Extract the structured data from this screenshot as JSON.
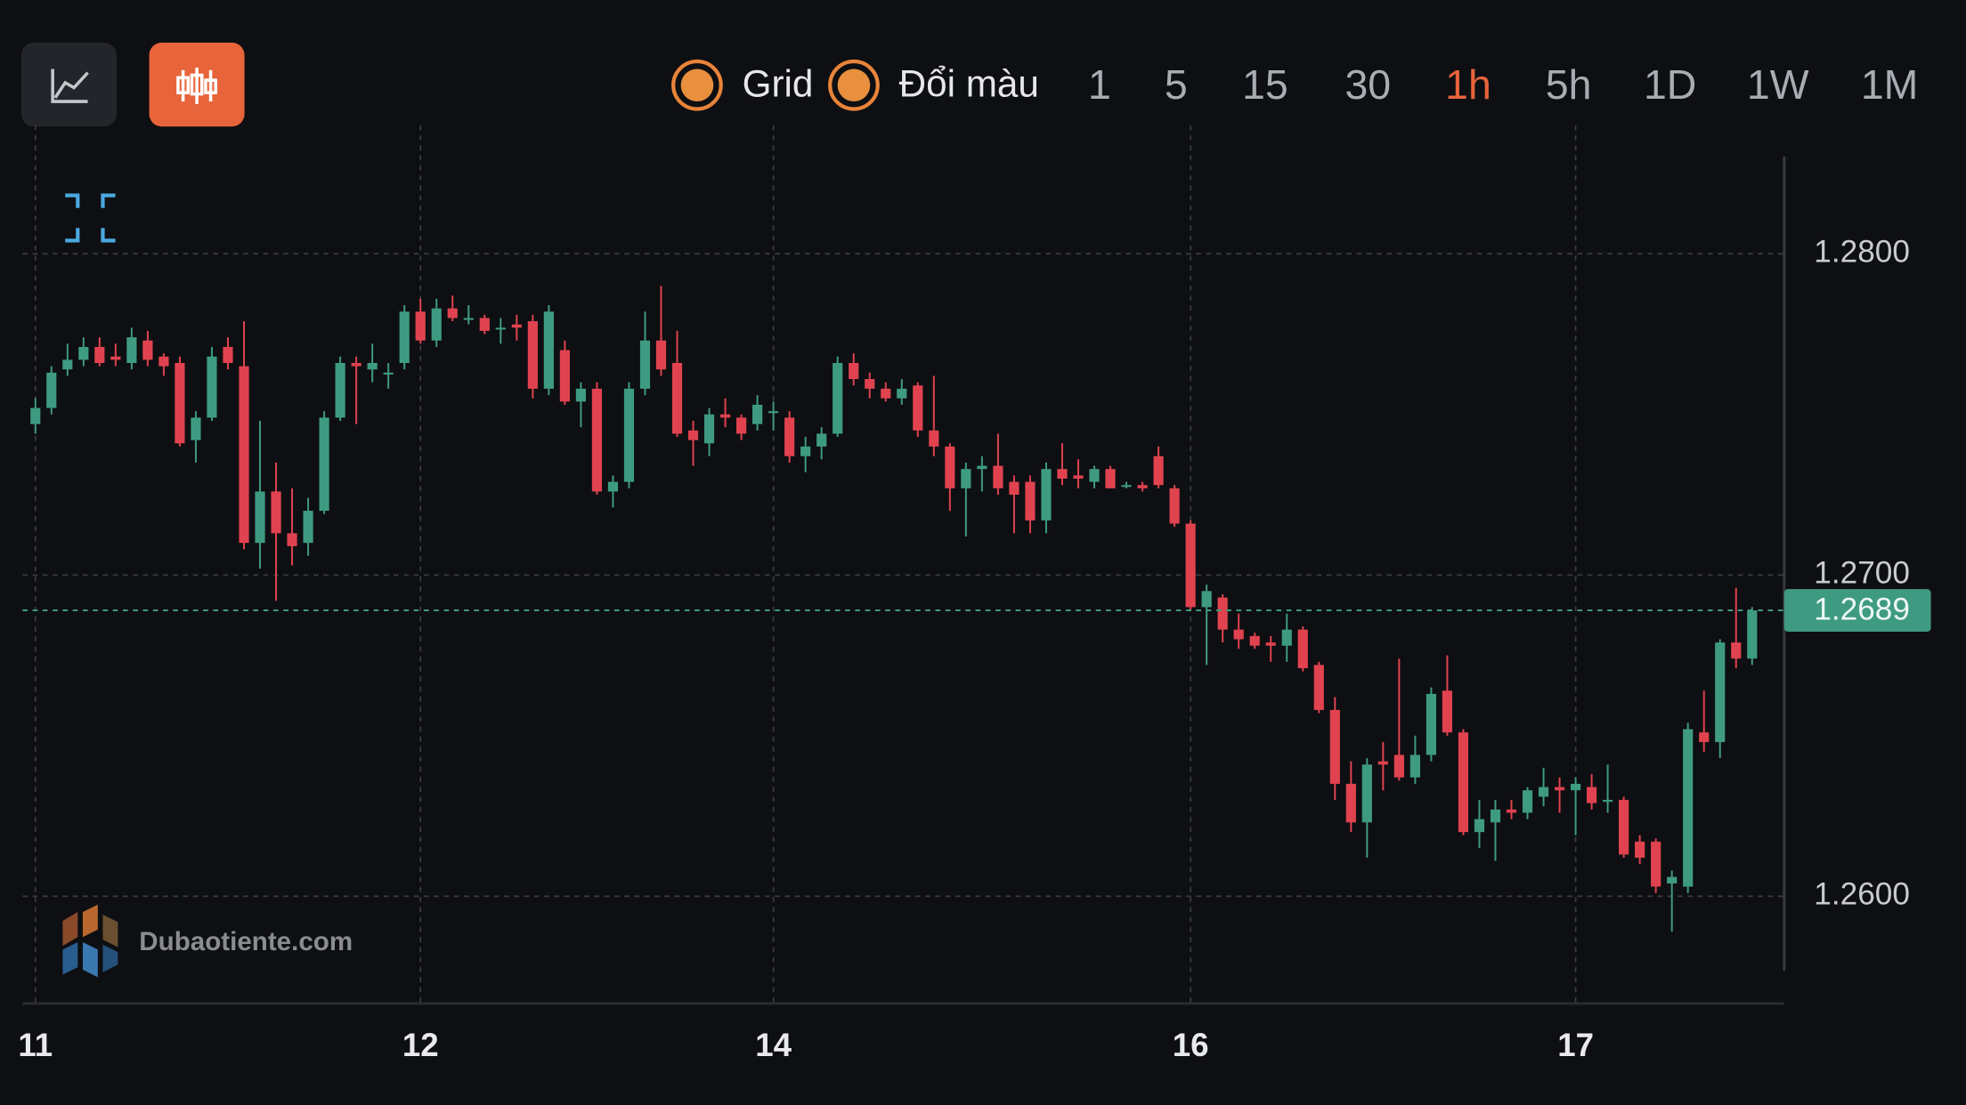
{
  "toolbar": {
    "toggles": [
      "Grid",
      "Đổi màu"
    ],
    "timeframes": [
      "1",
      "5",
      "15",
      "30",
      "1h",
      "5h",
      "1D",
      "1W",
      "1M"
    ],
    "active_timeframe": 4
  },
  "watermark": "Dubaotiente.com",
  "chart_data": {
    "type": "candlestick",
    "open": [
      1.2747,
      1.2752,
      1.2764,
      1.2767,
      1.2771,
      1.2768,
      1.2766,
      1.2773,
      1.2768,
      1.2766,
      1.2742,
      1.2749,
      1.2771,
      1.2765,
      1.271,
      1.2726,
      1.2713,
      1.271,
      1.272,
      1.2749,
      1.2766,
      1.2764,
      1.2763,
      1.2766,
      1.2782,
      1.2773,
      1.2783,
      1.278,
      1.278,
      1.2777,
      1.2778,
      1.2779,
      1.2758,
      1.277,
      1.2754,
      1.2758,
      1.2726,
      1.2729,
      1.2758,
      1.2773,
      1.2766,
      1.2745,
      1.2741,
      1.275,
      1.2749,
      1.2747,
      1.2751,
      1.2749,
      1.2737,
      1.274,
      1.2744,
      1.2766,
      1.2761,
      1.2758,
      1.2755,
      1.2759,
      1.2745,
      1.274,
      1.2727,
      1.2733,
      1.2734,
      1.2729,
      1.2729,
      1.2717,
      1.2733,
      1.2731,
      1.2729,
      1.2733,
      1.2728,
      1.2728,
      1.2737,
      1.2727,
      1.2716,
      1.269,
      1.2693,
      1.2683,
      1.2681,
      1.2679,
      1.2678,
      1.2683,
      1.2672,
      1.2658,
      1.2635,
      1.2623,
      1.2642,
      1.2644,
      1.2637,
      1.2644,
      1.2664,
      1.2651,
      1.262,
      1.2623,
      1.2627,
      1.2626,
      1.2631,
      1.2634,
      1.2633,
      1.2634,
      1.263,
      1.263,
      1.2617,
      1.2617,
      1.2604,
      1.2603,
      1.2651,
      1.2648,
      1.2679,
      1.2674
    ],
    "high": [
      1.2755,
      1.2765,
      1.2772,
      1.2774,
      1.2774,
      1.2772,
      1.2777,
      1.2776,
      1.2769,
      1.2768,
      1.2751,
      1.2771,
      1.2774,
      1.2779,
      1.2748,
      1.2735,
      1.2727,
      1.2724,
      1.2751,
      1.2768,
      1.2768,
      1.2772,
      1.2766,
      1.2784,
      1.2786,
      1.2786,
      1.2787,
      1.2784,
      1.2781,
      1.278,
      1.2781,
      1.2781,
      1.2784,
      1.2773,
      1.276,
      1.276,
      1.2731,
      1.276,
      1.2782,
      1.279,
      1.2776,
      1.2748,
      1.2752,
      1.2755,
      1.275,
      1.2756,
      1.2754,
      1.2751,
      1.2743,
      1.2746,
      1.2768,
      1.2769,
      1.2763,
      1.276,
      1.2761,
      1.276,
      1.2762,
      1.2741,
      1.2735,
      1.2737,
      1.2744,
      1.2731,
      1.2731,
      1.2735,
      1.2741,
      1.2736,
      1.2734,
      1.2734,
      1.2729,
      1.2729,
      1.274,
      1.2728,
      1.2717,
      1.2697,
      1.2694,
      1.2688,
      1.2682,
      1.2681,
      1.2688,
      1.2684,
      1.2673,
      1.2662,
      1.2642,
      1.2643,
      1.2648,
      1.2674,
      1.265,
      1.2665,
      1.2675,
      1.2652,
      1.263,
      1.263,
      1.263,
      1.2634,
      1.264,
      1.2637,
      1.2637,
      1.2638,
      1.2641,
      1.2631,
      1.2619,
      1.2618,
      1.2608,
      1.2654,
      1.2664,
      1.268,
      1.2696,
      1.269
    ],
    "low": [
      1.2744,
      1.275,
      1.2762,
      1.2765,
      1.2765,
      1.2765,
      1.2764,
      1.2765,
      1.2762,
      1.274,
      1.2735,
      1.2748,
      1.2764,
      1.2708,
      1.2702,
      1.2692,
      1.2703,
      1.2706,
      1.2719,
      1.2748,
      1.2747,
      1.276,
      1.2758,
      1.2764,
      1.2772,
      1.2771,
      1.2779,
      1.2778,
      1.2775,
      1.2772,
      1.2773,
      1.2755,
      1.2756,
      1.2753,
      1.2746,
      1.2725,
      1.2721,
      1.2727,
      1.2756,
      1.2762,
      1.2743,
      1.2734,
      1.2737,
      1.2746,
      1.2742,
      1.2745,
      1.2745,
      1.2735,
      1.2732,
      1.2736,
      1.2743,
      1.2759,
      1.2755,
      1.2754,
      1.2753,
      1.2743,
      1.2737,
      1.272,
      1.2712,
      1.2726,
      1.2725,
      1.2713,
      1.2713,
      1.2713,
      1.2728,
      1.2727,
      1.2727,
      1.2727,
      1.2727,
      1.2726,
      1.2727,
      1.2715,
      1.2689,
      1.2672,
      1.2679,
      1.2677,
      1.2677,
      1.2673,
      1.2673,
      1.267,
      1.2657,
      1.263,
      1.262,
      1.2612,
      1.2633,
      1.2636,
      1.2635,
      1.2642,
      1.265,
      1.2619,
      1.2615,
      1.2611,
      1.2624,
      1.2624,
      1.2628,
      1.2626,
      1.2619,
      1.2627,
      1.2626,
      1.2612,
      1.261,
      1.2601,
      1.2589,
      1.2601,
      1.2645,
      1.2643,
      1.2671,
      1.2672
    ],
    "close": [
      1.2752,
      1.2763,
      1.2767,
      1.2771,
      1.2766,
      1.2767,
      1.2774,
      1.2767,
      1.2765,
      1.2741,
      1.2749,
      1.2768,
      1.2766,
      1.271,
      1.2726,
      1.2713,
      1.2709,
      1.272,
      1.2749,
      1.2766,
      1.2765,
      1.2766,
      1.2763,
      1.2782,
      1.2773,
      1.2783,
      1.278,
      1.278,
      1.2776,
      1.2777,
      1.2777,
      1.2758,
      1.2782,
      1.2754,
      1.2758,
      1.2726,
      1.2729,
      1.2758,
      1.2773,
      1.2764,
      1.2744,
      1.2742,
      1.275,
      1.2749,
      1.2744,
      1.2753,
      1.2751,
      1.2737,
      1.274,
      1.2744,
      1.2766,
      1.2761,
      1.2758,
      1.2755,
      1.2758,
      1.2745,
      1.274,
      1.2727,
      1.2733,
      1.2734,
      1.2727,
      1.2725,
      1.2717,
      1.2733,
      1.273,
      1.273,
      1.2733,
      1.2727,
      1.2728,
      1.2727,
      1.2728,
      1.2716,
      1.269,
      1.2695,
      1.2683,
      1.268,
      1.2678,
      1.2678,
      1.2683,
      1.2671,
      1.2658,
      1.2635,
      1.2623,
      1.2641,
      1.2641,
      1.2637,
      1.2644,
      1.2663,
      1.2651,
      1.262,
      1.2624,
      1.2627,
      1.2626,
      1.2633,
      1.2634,
      1.2633,
      1.2635,
      1.2629,
      1.263,
      1.2613,
      1.2612,
      1.2603,
      1.2606,
      1.2652,
      1.2648,
      1.2679,
      1.2674,
      1.2689
    ],
    "up_color": "#3e9b82",
    "down_color": "#e0434f",
    "last_price": 1.2689,
    "xlim": [
      -0.8,
      109
    ],
    "xticks": [
      {
        "value": 0,
        "label": "11"
      },
      {
        "value": 24,
        "label": "12"
      },
      {
        "value": 46,
        "label": "14"
      },
      {
        "value": 72,
        "label": "16"
      },
      {
        "value": 96,
        "label": "17"
      }
    ],
    "ylim": [
      1.2567,
      1.284
    ],
    "yticks": [
      {
        "value": 1.26,
        "label": "1.2600"
      },
      {
        "value": 1.27,
        "label": "1.2700"
      },
      {
        "value": 1.28,
        "label": "1.2800"
      }
    ],
    "grid": true
  }
}
